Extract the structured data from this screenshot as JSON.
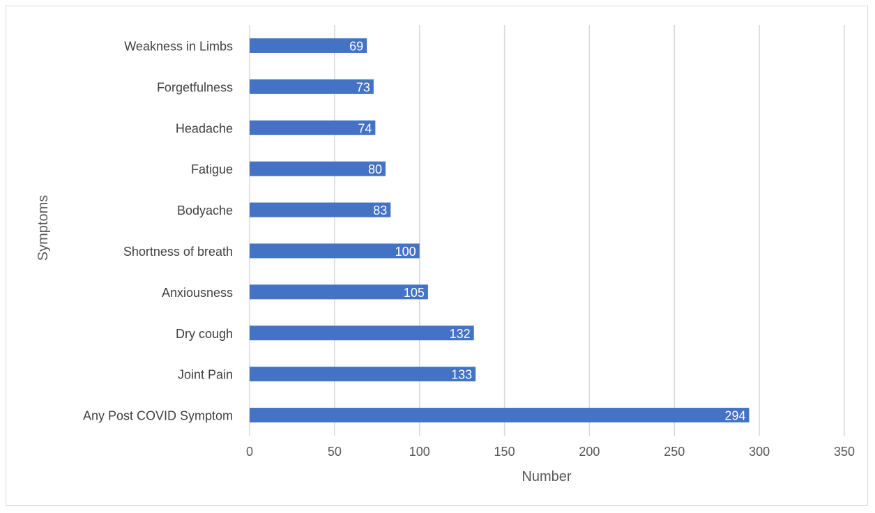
{
  "chart_data": {
    "type": "bar",
    "orientation": "horizontal",
    "title": "",
    "xlabel": "Number",
    "ylabel": "Symptoms",
    "xlim": [
      0,
      350
    ],
    "xticks": [
      0,
      50,
      100,
      150,
      200,
      250,
      300,
      350
    ],
    "grid": "vertical",
    "legend": "none",
    "bar_color": "#4472c4",
    "categories": [
      "Weakness in Limbs",
      "Forgetfulness",
      "Headache",
      "Fatigue",
      "Bodyache",
      "Shortness of breath",
      "Anxiousness",
      "Dry cough",
      "Joint Pain",
      "Any Post COVID Symptom"
    ],
    "values": [
      69,
      73,
      74,
      80,
      83,
      100,
      105,
      132,
      133,
      294
    ]
  }
}
